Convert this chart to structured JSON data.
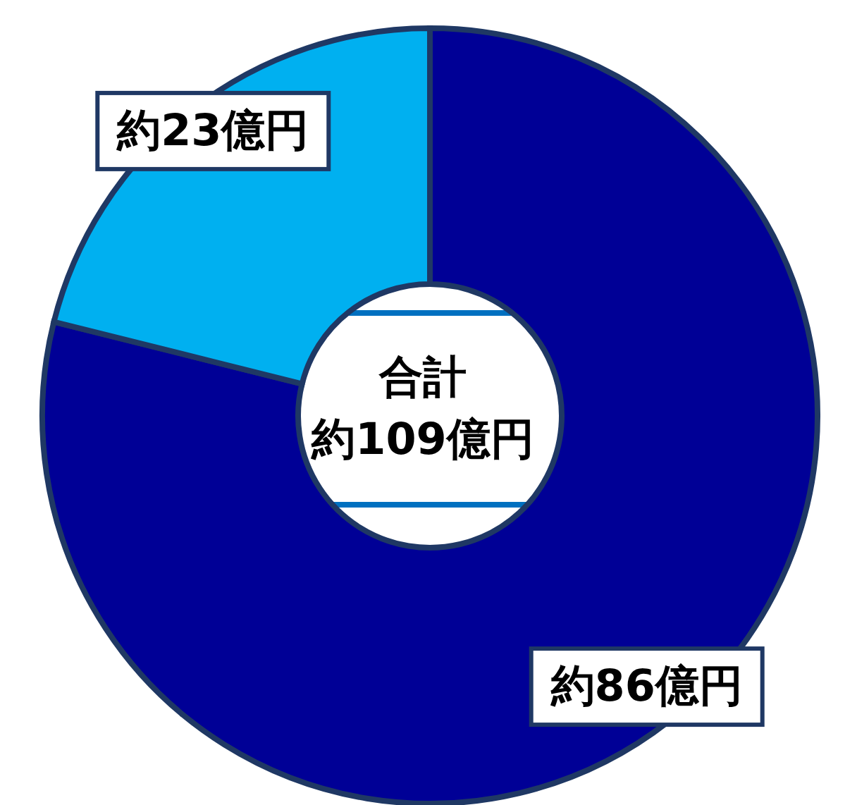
{
  "chart_data": {
    "type": "donut",
    "categories": [
      null,
      null
    ],
    "values": [
      86,
      23
    ],
    "colors": [
      "#000096",
      "#00b0f0"
    ],
    "value_labels": [
      "約86億円",
      "約23億円"
    ],
    "annotations": [
      "合計",
      "約109億円"
    ]
  }
}
